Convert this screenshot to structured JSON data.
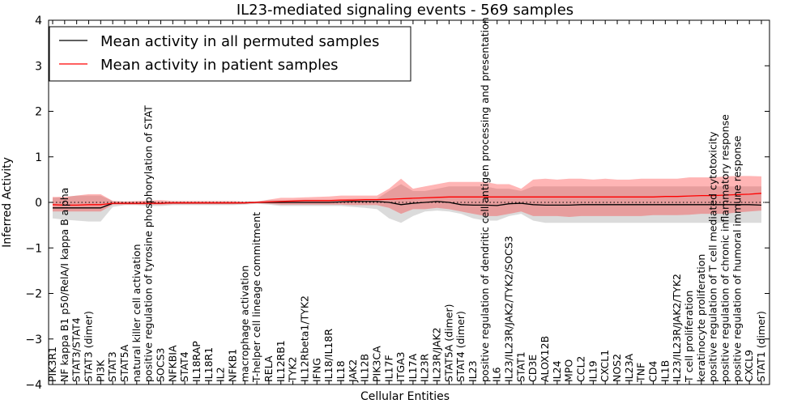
{
  "chart_data": {
    "type": "line",
    "title": "IL23-mediated signaling events - 569 samples",
    "xlabel": "Cellular Entities",
    "ylabel": "Inferred Activity",
    "ylim": [
      -4,
      4
    ],
    "yticks": [
      -4,
      -3,
      -2,
      -1,
      0,
      1,
      2,
      3,
      4
    ],
    "ytick_labels": [
      "−4",
      "−3",
      "−2",
      "−1",
      "0",
      "1",
      "2",
      "3",
      "4"
    ],
    "grid": false,
    "legend_position": "top-left",
    "categories": [
      "PIK3R1",
      "NF kappa B1 p50/RelA/I kappa B alpha",
      "STAT3/STAT4",
      "STAT3 (dimer)",
      "PI3K",
      "STAT3",
      "STAT5A",
      "natural killer cell activation",
      "positive regulation of tyrosine phosphorylation of STAT",
      "SOCS3",
      "NFKBIA",
      "STAT4",
      "IL18RAP",
      "IL18R1",
      "IL2",
      "NFKB1",
      "macrophage activation",
      "T-helper cell lineage commitment",
      "RELA",
      "IL12RB1",
      "TYK2",
      "IL12Rbeta1/TYK2",
      "IFNG",
      "IL18/IL18R",
      "IL18",
      "JAK2",
      "IL12B",
      "PIK3CA",
      "IL17F",
      "ITGA3",
      "IL17A",
      "IL23R",
      "IL23R/JAK2",
      "STAT5A (dimer)",
      "STAT4 (dimer)",
      "IL23",
      "positive regulation of dendritic cell antigen processing and presentation",
      "IL6",
      "IL23/IL23R/JAK2/TYK2/SOCS3",
      "STAT1",
      "CD3E",
      "ALOX12B",
      "IL24",
      "MPO",
      "CCL2",
      "IL19",
      "CXCL1",
      "NOS2",
      "IL23A",
      "TNF",
      "CD4",
      "IL1B",
      "IL23/IL23R/JAK2/TYK2",
      "T cell proliferation",
      "keratinocyte proliferation",
      "positive regulation of T cell mediated cytotoxicity",
      "positive regulation of chronic inflammatory response",
      "positive regulation of humoral immune response",
      "CXCL9",
      "STAT1 (dimer)"
    ],
    "series": [
      {
        "name": "Mean activity in all permuted samples",
        "color": "#000000",
        "values": [
          -0.12,
          -0.12,
          -0.12,
          -0.12,
          -0.12,
          -0.02,
          -0.02,
          -0.02,
          -0.02,
          -0.02,
          -0.01,
          -0.01,
          -0.01,
          -0.01,
          -0.01,
          -0.01,
          -0.01,
          0.0,
          0.0,
          0.0,
          0.0,
          0.0,
          0.0,
          0.0,
          0.01,
          0.02,
          0.02,
          0.02,
          0.0,
          -0.05,
          -0.02,
          0.0,
          0.02,
          0.0,
          -0.05,
          -0.06,
          -0.06,
          -0.07,
          -0.03,
          -0.02,
          -0.05,
          -0.06,
          -0.06,
          -0.06,
          -0.05,
          -0.05,
          -0.05,
          -0.05,
          -0.05,
          -0.05,
          -0.05,
          -0.05,
          -0.05,
          -0.05,
          -0.05,
          -0.05,
          -0.05,
          -0.05,
          -0.05,
          -0.06
        ],
        "band_low": [
          -0.35,
          -0.38,
          -0.4,
          -0.42,
          -0.42,
          -0.1,
          -0.06,
          -0.06,
          -0.08,
          -0.08,
          -0.06,
          -0.06,
          -0.06,
          -0.06,
          -0.06,
          -0.06,
          -0.05,
          -0.03,
          -0.05,
          -0.08,
          -0.08,
          -0.08,
          -0.08,
          -0.08,
          -0.08,
          -0.1,
          -0.12,
          -0.15,
          -0.35,
          -0.45,
          -0.3,
          -0.2,
          -0.18,
          -0.2,
          -0.25,
          -0.35,
          -0.4,
          -0.4,
          -0.3,
          -0.25,
          -0.4,
          -0.45,
          -0.45,
          -0.45,
          -0.45,
          -0.45,
          -0.45,
          -0.45,
          -0.45,
          -0.45,
          -0.45,
          -0.45,
          -0.45,
          -0.45,
          -0.45,
          -0.45,
          -0.45,
          -0.45,
          -0.45,
          -0.45
        ],
        "band_high": [
          0.1,
          0.12,
          0.15,
          0.15,
          0.15,
          0.03,
          0.02,
          0.02,
          0.02,
          0.02,
          0.02,
          0.02,
          0.02,
          0.02,
          0.02,
          0.02,
          0.02,
          0.02,
          0.05,
          0.05,
          0.05,
          0.06,
          0.06,
          0.06,
          0.06,
          0.08,
          0.08,
          0.08,
          0.25,
          0.4,
          0.25,
          0.25,
          0.3,
          0.35,
          0.35,
          0.35,
          0.35,
          0.3,
          0.3,
          0.25,
          0.35,
          0.35,
          0.35,
          0.35,
          0.35,
          0.35,
          0.35,
          0.35,
          0.35,
          0.35,
          0.35,
          0.35,
          0.35,
          0.35,
          0.35,
          0.35,
          0.35,
          0.35,
          0.35,
          0.35
        ]
      },
      {
        "name": "Mean activity in patient samples",
        "color": "#ff0000",
        "values": [
          -0.05,
          -0.06,
          -0.06,
          -0.05,
          -0.05,
          -0.02,
          -0.02,
          -0.02,
          -0.02,
          -0.02,
          -0.01,
          -0.01,
          -0.01,
          -0.01,
          -0.01,
          -0.01,
          -0.01,
          0.0,
          0.01,
          0.02,
          0.03,
          0.04,
          0.04,
          0.04,
          0.05,
          0.05,
          0.06,
          0.06,
          0.07,
          0.08,
          0.09,
          0.1,
          0.11,
          0.12,
          0.12,
          0.12,
          0.12,
          0.12,
          0.12,
          0.12,
          0.12,
          0.12,
          0.12,
          0.12,
          0.12,
          0.12,
          0.12,
          0.12,
          0.12,
          0.12,
          0.12,
          0.13,
          0.13,
          0.14,
          0.15,
          0.15,
          0.16,
          0.17,
          0.18,
          0.2
        ],
        "band_low": [
          -0.2,
          -0.2,
          -0.2,
          -0.2,
          -0.2,
          -0.05,
          -0.05,
          -0.05,
          -0.05,
          -0.05,
          -0.04,
          -0.04,
          -0.04,
          -0.04,
          -0.04,
          -0.04,
          -0.03,
          -0.02,
          -0.03,
          -0.05,
          -0.05,
          -0.05,
          -0.05,
          -0.05,
          -0.05,
          -0.06,
          -0.06,
          -0.06,
          -0.12,
          -0.25,
          -0.15,
          -0.15,
          -0.12,
          -0.15,
          -0.2,
          -0.25,
          -0.3,
          -0.3,
          -0.25,
          -0.2,
          -0.3,
          -0.3,
          -0.3,
          -0.32,
          -0.3,
          -0.3,
          -0.3,
          -0.3,
          -0.3,
          -0.3,
          -0.28,
          -0.28,
          -0.28,
          -0.27,
          -0.25,
          -0.25,
          -0.25,
          -0.22,
          -0.2,
          -0.18
        ],
        "band_high": [
          0.12,
          0.12,
          0.15,
          0.18,
          0.18,
          0.03,
          0.02,
          0.03,
          0.04,
          0.05,
          0.03,
          0.03,
          0.03,
          0.03,
          0.03,
          0.03,
          0.02,
          0.02,
          0.06,
          0.1,
          0.1,
          0.11,
          0.12,
          0.13,
          0.15,
          0.15,
          0.15,
          0.15,
          0.3,
          0.52,
          0.3,
          0.35,
          0.4,
          0.45,
          0.45,
          0.45,
          0.45,
          0.4,
          0.4,
          0.3,
          0.5,
          0.52,
          0.5,
          0.52,
          0.52,
          0.5,
          0.52,
          0.5,
          0.5,
          0.52,
          0.52,
          0.52,
          0.52,
          0.55,
          0.55,
          0.55,
          0.57,
          0.58,
          0.58,
          0.57
        ]
      }
    ]
  }
}
